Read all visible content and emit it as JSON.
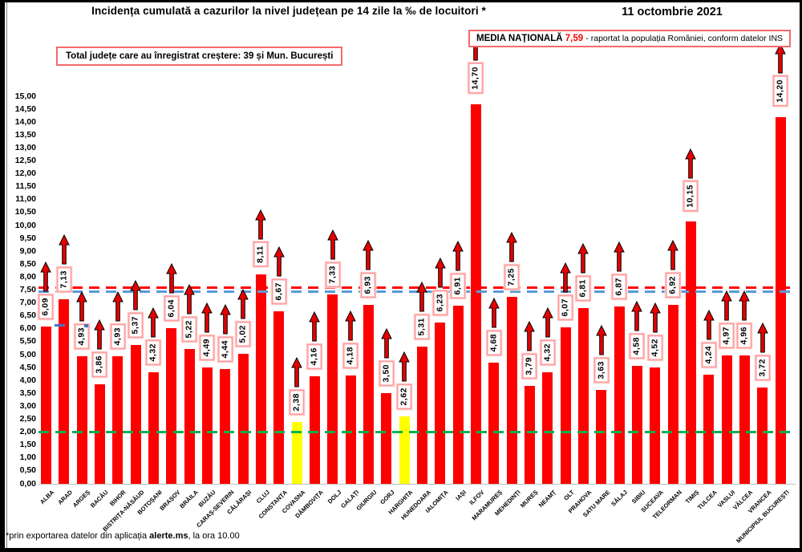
{
  "header": {
    "title": "Incidența cumulată a cazurilor la nivel județean pe 14 zile la ‰ de locuitori *",
    "date": "11 octombrie 2021",
    "total_box": "Total județe care au înregistrat creștere:  39 și Mun. București",
    "media_box": {
      "label": "MEDIA NAȚIONALĂ",
      "value": "7,59",
      "suffix": "-  raportat la populația României, conform datelor INS"
    }
  },
  "footer": {
    "prefix": "*prin exportarea datelor din aplicația ",
    "app": "alerte.ms",
    "suffix": ", la ora 10.00"
  },
  "colors": {
    "bar_red": "#ff0000",
    "bar_yellow": "#ffff00",
    "avg_line_red": "#ff0000",
    "avg_line_blue": "#5b9bd5",
    "threshold_green": "#00b050",
    "box_border": "#f46a6a",
    "label_box_border": "#ff9d9d",
    "blue_marker": "#4472c4",
    "arrow_fill": "#e60000"
  },
  "chart_data": {
    "type": "bar",
    "title": "Incidența cumulată a cazurilor la nivel județean pe 14 zile la ‰ de locuitori *",
    "xlabel": "",
    "ylabel": "",
    "ylim": [
      0,
      15
    ],
    "ytick_step": 0.5,
    "grid": false,
    "yticks": [
      "15,00",
      "14,50",
      "14,00",
      "13,50",
      "13,00",
      "12,50",
      "12,00",
      "11,50",
      "11,00",
      "10,50",
      "10,00",
      "9,50",
      "9,00",
      "8,50",
      "8,00",
      "7,50",
      "7,00",
      "6,50",
      "6,00",
      "5,50",
      "5,00",
      "4,50",
      "4,00",
      "3,50",
      "3,00",
      "2,50",
      "2,00",
      "1,50",
      "1,00",
      "0,50",
      "0,00"
    ],
    "national_average": 7.59,
    "reference_lines": [
      {
        "name": "media-nationala-red",
        "value": 7.59,
        "color_key": "avg_line_red"
      },
      {
        "name": "media-nationala-blue",
        "value": 7.45,
        "color_key": "avg_line_blue"
      },
      {
        "name": "prag-verde",
        "value": 2.0,
        "color_key": "threshold_green"
      }
    ],
    "bars": [
      {
        "name": "ALBA",
        "value": 6.09,
        "label": "6,09",
        "color": "red"
      },
      {
        "name": "ARAD",
        "value": 7.13,
        "label": "7,13",
        "color": "red"
      },
      {
        "name": "ARGEȘ",
        "value": 4.93,
        "label": "4,93",
        "color": "red"
      },
      {
        "name": "BACĂU",
        "value": 3.86,
        "label": "3,86",
        "color": "red"
      },
      {
        "name": "BIHOR",
        "value": 4.93,
        "label": "4,93",
        "color": "red"
      },
      {
        "name": "BISTRIȚA-NĂSĂUD",
        "value": 5.37,
        "label": "5,37",
        "color": "red"
      },
      {
        "name": "BOTOȘANI",
        "value": 4.32,
        "label": "4,32",
        "color": "red"
      },
      {
        "name": "BRAȘOV",
        "value": 6.04,
        "label": "6,04",
        "color": "red"
      },
      {
        "name": "BRĂILA",
        "value": 5.22,
        "label": "5,22",
        "color": "red"
      },
      {
        "name": "BUZĂU",
        "value": 4.49,
        "label": "4,49",
        "color": "red"
      },
      {
        "name": "CARAȘ-SEVERIN",
        "value": 4.44,
        "label": "4,44",
        "color": "red"
      },
      {
        "name": "CĂLĂRAȘI",
        "value": 5.02,
        "label": "5,02",
        "color": "red"
      },
      {
        "name": "CLUJ",
        "value": 8.11,
        "label": "8,11",
        "color": "red"
      },
      {
        "name": "CONSTANȚA",
        "value": 6.67,
        "label": "6,67",
        "color": "red"
      },
      {
        "name": "COVASNA",
        "value": 2.38,
        "label": "2,38",
        "color": "yellow"
      },
      {
        "name": "DÂMBOVIȚA",
        "value": 4.16,
        "label": "4,16",
        "color": "red"
      },
      {
        "name": "DOLJ",
        "value": 7.33,
        "label": "7,33",
        "color": "red"
      },
      {
        "name": "GALAȚI",
        "value": 4.18,
        "label": "4,18",
        "color": "red"
      },
      {
        "name": "GIURGIU",
        "value": 6.93,
        "label": "6,93",
        "color": "red"
      },
      {
        "name": "GORJ",
        "value": 3.5,
        "label": "3,50",
        "color": "red"
      },
      {
        "name": "HARGHITA",
        "value": 2.62,
        "label": "2,62",
        "color": "yellow"
      },
      {
        "name": "HUNEDOARA",
        "value": 5.31,
        "label": "5,31",
        "color": "red"
      },
      {
        "name": "IALOMIȚA",
        "value": 6.23,
        "label": "6,23",
        "color": "red"
      },
      {
        "name": "IAȘI",
        "value": 6.91,
        "label": "6,91",
        "color": "red"
      },
      {
        "name": "ILFOV",
        "value": 14.7,
        "label": "14,70",
        "color": "red"
      },
      {
        "name": "MARAMUREȘ",
        "value": 4.68,
        "label": "4,68",
        "color": "red"
      },
      {
        "name": "MEHEDINȚI",
        "value": 7.25,
        "label": "7,25",
        "color": "red"
      },
      {
        "name": "MUREȘ",
        "value": 3.79,
        "label": "3,79",
        "color": "red"
      },
      {
        "name": "NEAMȚ",
        "value": 4.32,
        "label": "4,32",
        "color": "red"
      },
      {
        "name": "OLT",
        "value": 6.07,
        "label": "6,07",
        "color": "red"
      },
      {
        "name": "PRAHOVA",
        "value": 6.81,
        "label": "6,81",
        "color": "red"
      },
      {
        "name": "SATU MARE",
        "value": 3.63,
        "label": "3,63",
        "color": "red"
      },
      {
        "name": "SĂLAJ",
        "value": 6.87,
        "label": "6,87",
        "color": "red"
      },
      {
        "name": "SIBIU",
        "value": 4.58,
        "label": "4,58",
        "color": "red"
      },
      {
        "name": "SUCEAVA",
        "value": 4.52,
        "label": "4,52",
        "color": "red"
      },
      {
        "name": "TELEORMAN",
        "value": 6.92,
        "label": "6,92",
        "color": "red"
      },
      {
        "name": "TIMIȘ",
        "value": 10.15,
        "label": "10,15",
        "color": "red"
      },
      {
        "name": "TULCEA",
        "value": 4.24,
        "label": "4,24",
        "color": "red"
      },
      {
        "name": "VASLUI",
        "value": 4.97,
        "label": "4,97",
        "color": "red"
      },
      {
        "name": "VÂLCEA",
        "value": 4.96,
        "label": "4,96",
        "color": "red"
      },
      {
        "name": "VRANCEA",
        "value": 3.72,
        "label": "3,72",
        "color": "red"
      },
      {
        "name": "MUNICIPIUL BUCUREȘTI",
        "value": 14.2,
        "label": "14,20",
        "color": "red"
      }
    ]
  }
}
